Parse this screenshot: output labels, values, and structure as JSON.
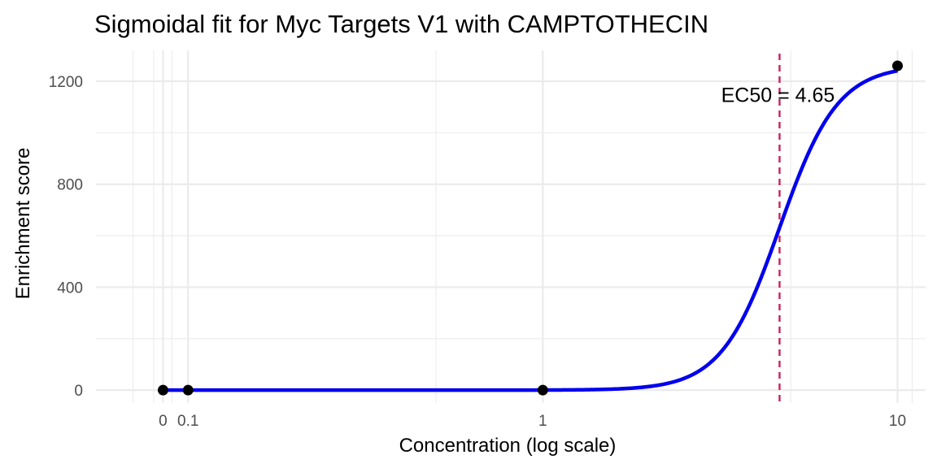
{
  "chart_data": {
    "type": "line",
    "title": "Sigmoidal fit for Myc Targets V1 with CAMPTOTHECIN",
    "xlabel": "Concentration (log scale)",
    "ylabel": "Enrichment score",
    "x_scale": "log10",
    "xlim": [
      0.055,
      12
    ],
    "ylim": [
      -50,
      1320
    ],
    "x_ticks": [
      {
        "value": 0.085,
        "label": "0"
      },
      {
        "value": 0.1,
        "label": "0.1"
      },
      {
        "value": 1,
        "label": "1"
      },
      {
        "value": 10,
        "label": "10"
      }
    ],
    "y_ticks": [
      {
        "value": 0,
        "label": "0"
      },
      {
        "value": 400,
        "label": "400"
      },
      {
        "value": 800,
        "label": "800"
      },
      {
        "value": 1200,
        "label": "1200"
      }
    ],
    "points": [
      {
        "x": 0.085,
        "y": 0
      },
      {
        "x": 0.1,
        "y": 0
      },
      {
        "x": 1,
        "y": 0
      },
      {
        "x": 10,
        "y": 1260
      }
    ],
    "fit": {
      "top": 1262,
      "bottom": 0,
      "ec50": 4.65,
      "hill": 5.3
    },
    "ec50": {
      "value": 4.65,
      "label": "EC50 = 4.65"
    },
    "colors": {
      "fit_line": "#0000ee",
      "ec50_line": "#cc1f5a",
      "points": "#000000",
      "grid": "#ebebeb"
    },
    "grid": true,
    "legend": "none"
  }
}
